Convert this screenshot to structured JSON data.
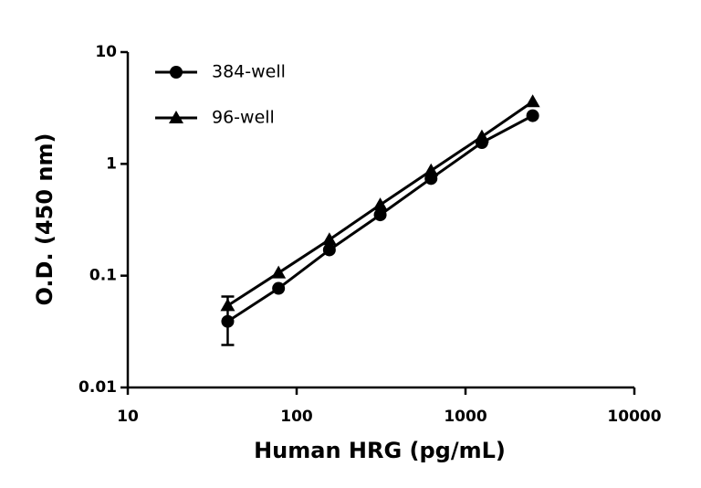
{
  "chart_data": {
    "type": "line",
    "x_label": "Human HRG (pg/mL)",
    "y_label": "O.D. (450 nm)",
    "x": [
      39.06,
      78.125,
      156.25,
      312.5,
      625,
      1250,
      2500
    ],
    "series": [
      {
        "name": "384-well",
        "color": "#000000",
        "marker": "circle",
        "values": [
          0.039,
          0.077,
          0.17,
          0.35,
          0.74,
          1.55,
          2.7
        ],
        "error_minus": [
          0.015,
          null,
          null,
          null,
          null,
          null,
          null
        ],
        "error_plus": [
          0.026,
          null,
          null,
          null,
          null,
          null,
          null
        ]
      },
      {
        "name": "96-well",
        "color": "#000000",
        "marker": "triangle",
        "values": [
          0.054,
          0.106,
          0.21,
          0.43,
          0.87,
          1.75,
          3.6
        ]
      }
    ],
    "log_x": true,
    "log_y": true,
    "xlim": [
      10,
      10000
    ],
    "xticks": [
      10,
      100,
      1000,
      10000
    ],
    "ylim": [
      0.01,
      10
    ],
    "yticks": [
      0.01,
      0.1,
      1,
      10
    ],
    "legend": "top-left"
  }
}
